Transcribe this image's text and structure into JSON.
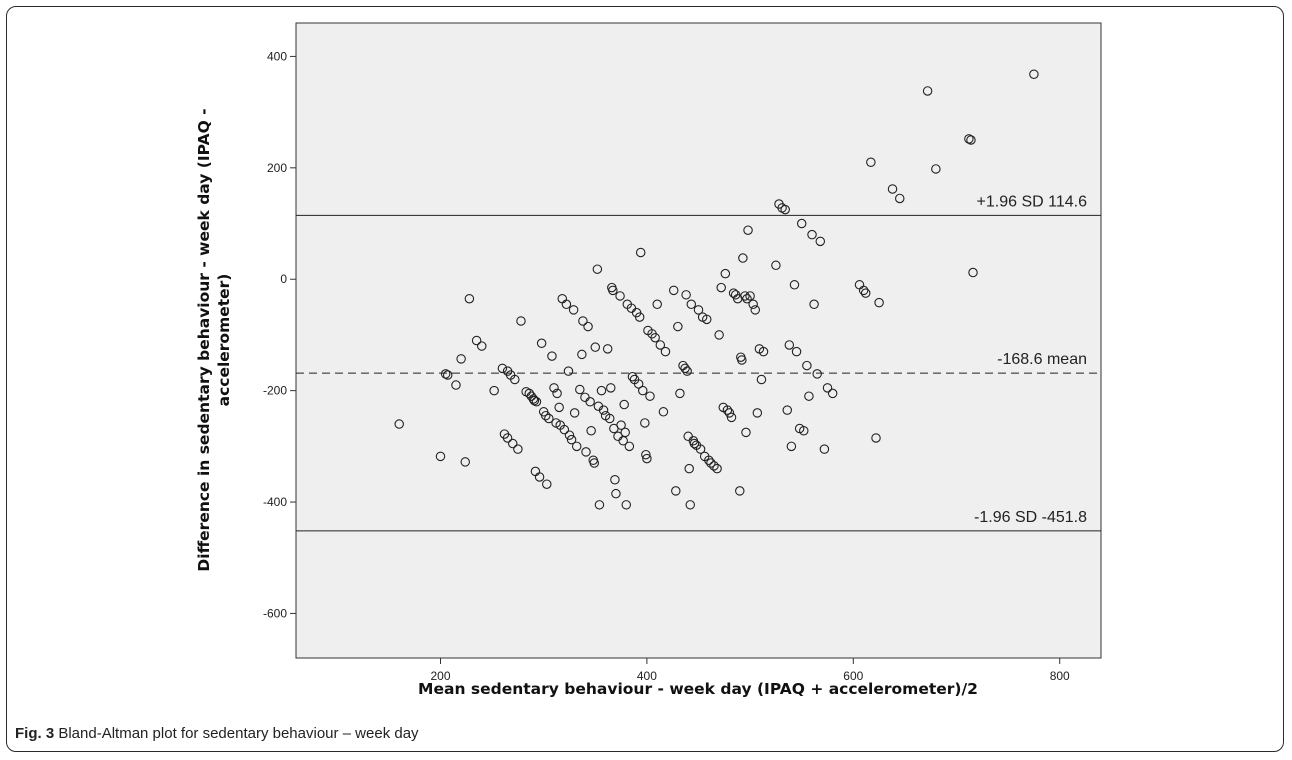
{
  "caption": {
    "label": "Fig. 3",
    "text": " Bland-Altman plot for sedentary behaviour – week day"
  },
  "chart_data": {
    "type": "scatter",
    "xlabel": "Mean sedentary behaviour - week day (IPAQ + accelerometer)/2",
    "ylabel_lines": [
      "Difference in sedentary behaviour - week day (IPAQ -",
      "accelerometer)"
    ],
    "xlim": [
      60,
      840
    ],
    "ylim": [
      -680,
      460
    ],
    "x_ticks": [
      200,
      400,
      600,
      800
    ],
    "y_ticks": [
      -600,
      -400,
      -200,
      0,
      200,
      400
    ],
    "grid": false,
    "plot_background": "#efefef",
    "reference_lines": [
      {
        "y": 114.6,
        "style": "solid",
        "label": "+1.96 SD 114.6"
      },
      {
        "y": -168.6,
        "style": "dashed",
        "label": "-168.6 mean"
      },
      {
        "y": -451.8,
        "style": "solid",
        "label": "-1.96 SD -451.8"
      }
    ],
    "points": [
      [
        160,
        -260
      ],
      [
        200,
        -318
      ],
      [
        205,
        -170
      ],
      [
        207,
        -172
      ],
      [
        215,
        -190
      ],
      [
        220,
        -143
      ],
      [
        224,
        -328
      ],
      [
        228,
        -35
      ],
      [
        235,
        -110
      ],
      [
        240,
        -120
      ],
      [
        252,
        -200
      ],
      [
        260,
        -160
      ],
      [
        262,
        -278
      ],
      [
        265,
        -165
      ],
      [
        265,
        -285
      ],
      [
        268,
        -172
      ],
      [
        270,
        -295
      ],
      [
        272,
        -180
      ],
      [
        275,
        -305
      ],
      [
        278,
        -75
      ],
      [
        283,
        -202
      ],
      [
        286,
        -205
      ],
      [
        288,
        -210
      ],
      [
        290,
        -215
      ],
      [
        291,
        -218
      ],
      [
        292,
        -345
      ],
      [
        293,
        -220
      ],
      [
        296,
        -355
      ],
      [
        298,
        -115
      ],
      [
        300,
        -238
      ],
      [
        302,
        -245
      ],
      [
        303,
        -368
      ],
      [
        305,
        -250
      ],
      [
        308,
        -138
      ],
      [
        310,
        -195
      ],
      [
        312,
        -258
      ],
      [
        313,
        -205
      ],
      [
        315,
        -230
      ],
      [
        316,
        -262
      ],
      [
        318,
        -35
      ],
      [
        320,
        -270
      ],
      [
        322,
        -45
      ],
      [
        324,
        -165
      ],
      [
        325,
        -280
      ],
      [
        327,
        -288
      ],
      [
        329,
        -55
      ],
      [
        330,
        -240
      ],
      [
        332,
        -300
      ],
      [
        335,
        -198
      ],
      [
        337,
        -135
      ],
      [
        338,
        -75
      ],
      [
        340,
        -212
      ],
      [
        341,
        -310
      ],
      [
        343,
        -85
      ],
      [
        345,
        -220
      ],
      [
        346,
        -272
      ],
      [
        348,
        -325
      ],
      [
        349,
        -330
      ],
      [
        350,
        -122
      ],
      [
        352,
        18
      ],
      [
        353,
        -228
      ],
      [
        354,
        -405
      ],
      [
        356,
        -200
      ],
      [
        358,
        -235
      ],
      [
        360,
        -245
      ],
      [
        362,
        -125
      ],
      [
        364,
        -250
      ],
      [
        365,
        -195
      ],
      [
        366,
        -15
      ],
      [
        367,
        -20
      ],
      [
        368,
        -268
      ],
      [
        369,
        -360
      ],
      [
        370,
        -385
      ],
      [
        372,
        -282
      ],
      [
        374,
        -30
      ],
      [
        375,
        -262
      ],
      [
        377,
        -290
      ],
      [
        378,
        -225
      ],
      [
        379,
        -275
      ],
      [
        380,
        -405
      ],
      [
        381,
        -45
      ],
      [
        383,
        -300
      ],
      [
        385,
        -52
      ],
      [
        386,
        -175
      ],
      [
        388,
        -180
      ],
      [
        390,
        -60
      ],
      [
        392,
        -188
      ],
      [
        393,
        -68
      ],
      [
        394,
        48
      ],
      [
        396,
        -200
      ],
      [
        398,
        -258
      ],
      [
        399,
        -315
      ],
      [
        400,
        -322
      ],
      [
        401,
        -92
      ],
      [
        403,
        -210
      ],
      [
        405,
        -98
      ],
      [
        408,
        -105
      ],
      [
        410,
        -45
      ],
      [
        413,
        -118
      ],
      [
        416,
        -238
      ],
      [
        418,
        -130
      ],
      [
        426,
        -20
      ],
      [
        428,
        -380
      ],
      [
        430,
        -85
      ],
      [
        432,
        -205
      ],
      [
        435,
        -155
      ],
      [
        437,
        -160
      ],
      [
        438,
        -28
      ],
      [
        439,
        -165
      ],
      [
        440,
        -282
      ],
      [
        441,
        -340
      ],
      [
        442,
        -405
      ],
      [
        443,
        -45
      ],
      [
        445,
        -290
      ],
      [
        446,
        -295
      ],
      [
        448,
        -298
      ],
      [
        450,
        -55
      ],
      [
        452,
        -305
      ],
      [
        454,
        -68
      ],
      [
        456,
        -318
      ],
      [
        458,
        -72
      ],
      [
        460,
        -325
      ],
      [
        462,
        -330
      ],
      [
        465,
        -335
      ],
      [
        468,
        -340
      ],
      [
        470,
        -100
      ],
      [
        472,
        -15
      ],
      [
        474,
        -230
      ],
      [
        476,
        10
      ],
      [
        478,
        -235
      ],
      [
        480,
        -240
      ],
      [
        482,
        -248
      ],
      [
        484,
        -25
      ],
      [
        486,
        -28
      ],
      [
        488,
        -35
      ],
      [
        490,
        -380
      ],
      [
        491,
        -140
      ],
      [
        492,
        -145
      ],
      [
        493,
        38
      ],
      [
        495,
        -30
      ],
      [
        496,
        -275
      ],
      [
        497,
        -35
      ],
      [
        498,
        88
      ],
      [
        500,
        -30
      ],
      [
        503,
        -45
      ],
      [
        505,
        -55
      ],
      [
        507,
        -240
      ],
      [
        509,
        -125
      ],
      [
        511,
        -180
      ],
      [
        513,
        -130
      ],
      [
        525,
        25
      ],
      [
        528,
        135
      ],
      [
        531,
        128
      ],
      [
        534,
        125
      ],
      [
        536,
        -235
      ],
      [
        538,
        -118
      ],
      [
        540,
        -300
      ],
      [
        543,
        -10
      ],
      [
        545,
        -130
      ],
      [
        548,
        -268
      ],
      [
        550,
        100
      ],
      [
        552,
        -272
      ],
      [
        555,
        -155
      ],
      [
        557,
        -210
      ],
      [
        560,
        80
      ],
      [
        562,
        -45
      ],
      [
        565,
        -170
      ],
      [
        568,
        68
      ],
      [
        572,
        -305
      ],
      [
        575,
        -195
      ],
      [
        580,
        -205
      ],
      [
        606,
        -10
      ],
      [
        610,
        -20
      ],
      [
        612,
        -25
      ],
      [
        617,
        210
      ],
      [
        622,
        -285
      ],
      [
        625,
        -42
      ],
      [
        638,
        162
      ],
      [
        645,
        145
      ],
      [
        672,
        338
      ],
      [
        680,
        198
      ],
      [
        712,
        252
      ],
      [
        714,
        250
      ],
      [
        716,
        12
      ],
      [
        775,
        368
      ]
    ]
  }
}
